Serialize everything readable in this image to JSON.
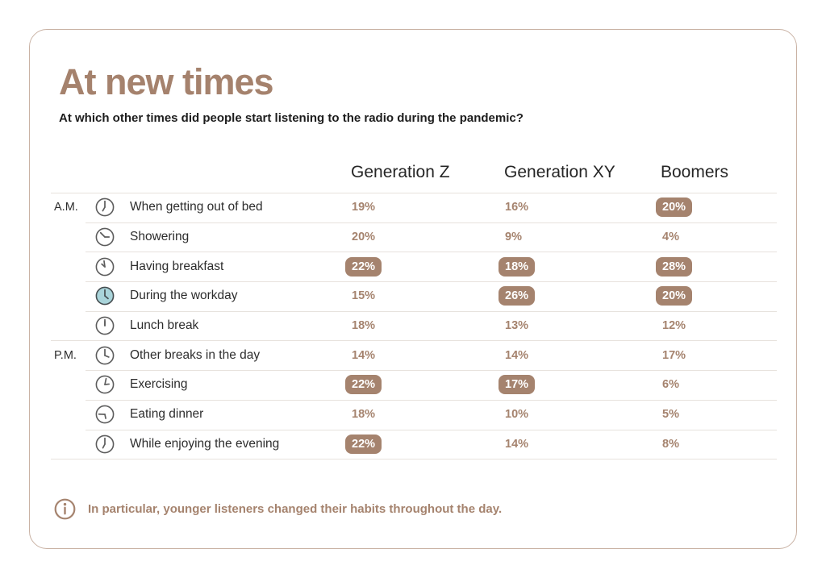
{
  "title": "At new times",
  "subtitle": "At which other times did people start listening to the radio during the pandemic?",
  "footer": {
    "icon": "info-icon",
    "text": "In particular, younger listeners changed their habits throughout the day."
  },
  "colors": {
    "accent_brown": "#a5836e",
    "title_brown": "#a5826d",
    "badge_text": "#ffffff",
    "highlight_teal": "#a9d4da",
    "card_border": "#c9b2a4",
    "separator": "#e7e2dd",
    "text_dark": "#2d2d2d",
    "icon_gray": "#5c5c5c"
  },
  "chart_data": {
    "type": "table",
    "title": "At new times",
    "question": "At which other times did people start listening to the radio during the pandemic?",
    "columns": [
      "Generation Z",
      "Generation XY",
      "Boomers"
    ],
    "value_suffix": "%",
    "period_groups": [
      "A.M.",
      "P.M."
    ],
    "rows": [
      {
        "period": "A.M.",
        "activity": "When getting out of bed",
        "icon": {
          "name": "clock-icon",
          "hands": [
            0,
            210
          ],
          "highlighted": false
        },
        "values": [
          19,
          16,
          20
        ],
        "badges": [
          false,
          false,
          true
        ],
        "group_start": true
      },
      {
        "period": "",
        "activity": "Showering",
        "icon": {
          "name": "clock-icon",
          "hands": [
            315,
            90
          ],
          "highlighted": false
        },
        "values": [
          20,
          9,
          4
        ],
        "badges": [
          false,
          false,
          false
        ],
        "group_start": false
      },
      {
        "period": "",
        "activity": "Having breakfast",
        "icon": {
          "name": "clock-icon",
          "hands": [
            352,
            312
          ],
          "highlighted": false
        },
        "values": [
          22,
          18,
          28
        ],
        "badges": [
          true,
          true,
          true
        ],
        "group_start": false
      },
      {
        "period": "",
        "activity": "During the workday",
        "icon": {
          "name": "clock-highlighted-icon",
          "hands": [
            0,
            130
          ],
          "highlighted": true
        },
        "values": [
          15,
          26,
          20
        ],
        "badges": [
          false,
          true,
          true
        ],
        "group_start": false
      },
      {
        "period": "",
        "activity": "Lunch break",
        "icon": {
          "name": "clock-icon",
          "hands": [
            0,
            0
          ],
          "highlighted": false
        },
        "values": [
          18,
          13,
          12
        ],
        "badges": [
          false,
          false,
          false
        ],
        "group_start": false
      },
      {
        "period": "P.M.",
        "activity": "Other breaks in the day",
        "icon": {
          "name": "clock-icon",
          "hands": [
            0,
            112
          ],
          "highlighted": false
        },
        "values": [
          14,
          14,
          17
        ],
        "badges": [
          false,
          false,
          false
        ],
        "group_start": true
      },
      {
        "period": "",
        "activity": "Exercising",
        "icon": {
          "name": "clock-icon",
          "hands": [
            12,
            84
          ],
          "highlighted": false
        },
        "values": [
          22,
          17,
          6
        ],
        "badges": [
          true,
          true,
          false
        ],
        "group_start": false
      },
      {
        "period": "",
        "activity": "Eating dinner",
        "icon": {
          "name": "clock-icon",
          "hands": [
            272,
            168
          ],
          "highlighted": false
        },
        "values": [
          18,
          10,
          5
        ],
        "badges": [
          false,
          false,
          false
        ],
        "group_start": false
      },
      {
        "period": "",
        "activity": "While enjoying the evening",
        "icon": {
          "name": "clock-icon",
          "hands": [
            0,
            208
          ],
          "highlighted": false
        },
        "values": [
          22,
          14,
          8
        ],
        "badges": [
          true,
          false,
          false
        ],
        "group_start": false
      }
    ]
  }
}
